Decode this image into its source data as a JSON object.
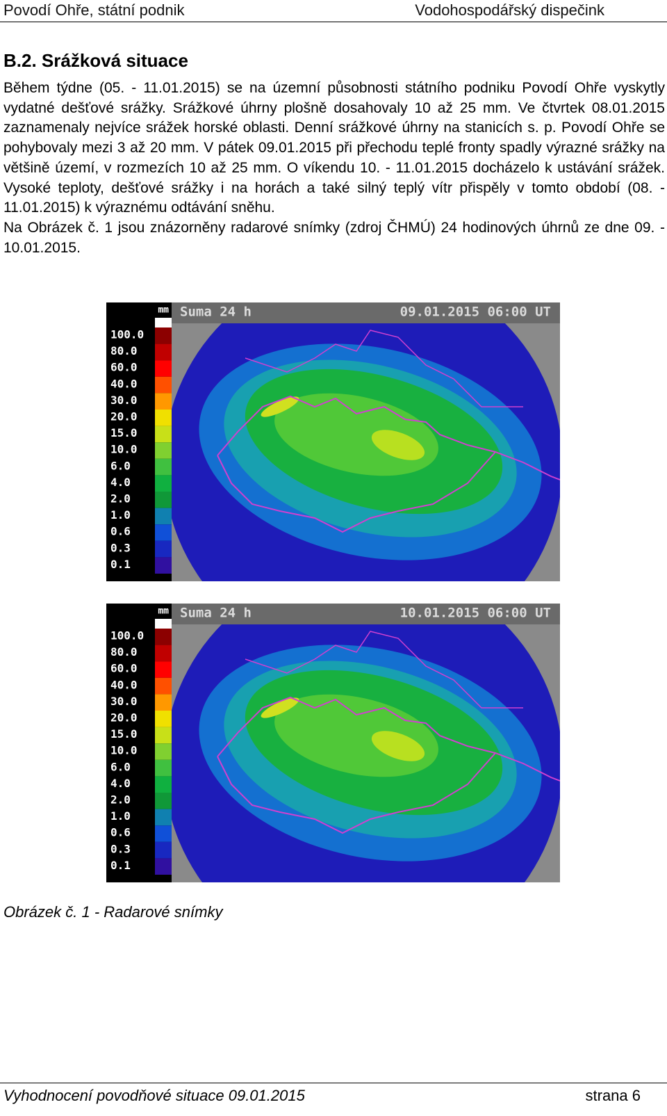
{
  "header": {
    "left": "Povodí Ohře, státní podnik",
    "right": "Vodohospodářský dispečink"
  },
  "section": {
    "title": "B.2. Srážková situace",
    "paragraphs": [
      "Během týdne (05. - 11.01.2015) se na územní působnosti státního podniku Povodí Ohře vyskytly vydatné dešťové srážky. Srážkové úhrny plošně dosahovaly 10 až 25 mm. Ve čtvrtek 08.01.2015 zaznamenaly nejvíce srážek horské oblasti. Denní srážkové úhrny na stanicích s. p. Povodí Ohře se pohybovaly mezi 3 až 20 mm. V pátek 09.01.2015 při přechodu teplé fronty spadly výrazné srážky na většině území, v rozmezích 10 až 25 mm. O víkendu 10. - 11.01.2015 docházelo k ustávání srážek. Vysoké teploty, dešťové srážky i na horách a také silný teplý vítr přispěly v tomto období (08. - 11.01.2015) k výraznému odtávání sněhu.",
      "Na Obrázek č. 1 jsou znázorněny radarové snímky (zdroj ČHMÚ) 24 hodinových úhrnů ze dne 09. - 10.01.2015."
    ]
  },
  "figures": [
    {
      "title": "Suma 24 h",
      "timestamp": "09.01.2015 06:00 UT",
      "unit": "mm",
      "legend": [
        "100.0",
        "80.0",
        "60.0",
        "40.0",
        "30.0",
        "20.0",
        "15.0",
        "10.0",
        "6.0",
        "4.0",
        "2.0",
        "1.0",
        "0.6",
        "0.3",
        "0.1"
      ]
    },
    {
      "title": "Suma 24 h",
      "timestamp": "10.01.2015 06:00 UT",
      "unit": "mm",
      "legend": [
        "100.0",
        "80.0",
        "60.0",
        "40.0",
        "30.0",
        "20.0",
        "15.0",
        "10.0",
        "6.0",
        "4.0",
        "2.0",
        "1.0",
        "0.6",
        "0.3",
        "0.1"
      ]
    }
  ],
  "legend_colors": [
    "#8c0000",
    "#c00000",
    "#ff0000",
    "#ff5000",
    "#ff9800",
    "#f0e000",
    "#c8e018",
    "#80d030",
    "#40c040",
    "#10b040",
    "#109838",
    "#1080b0",
    "#1050d8",
    "#1828c0",
    "#3010a0"
  ],
  "caption": "Obrázek č. 1 - Radarové snímky",
  "footer": {
    "left": "Vyhodnocení povodňové situace 09.01.2015",
    "right": "strana 6"
  }
}
